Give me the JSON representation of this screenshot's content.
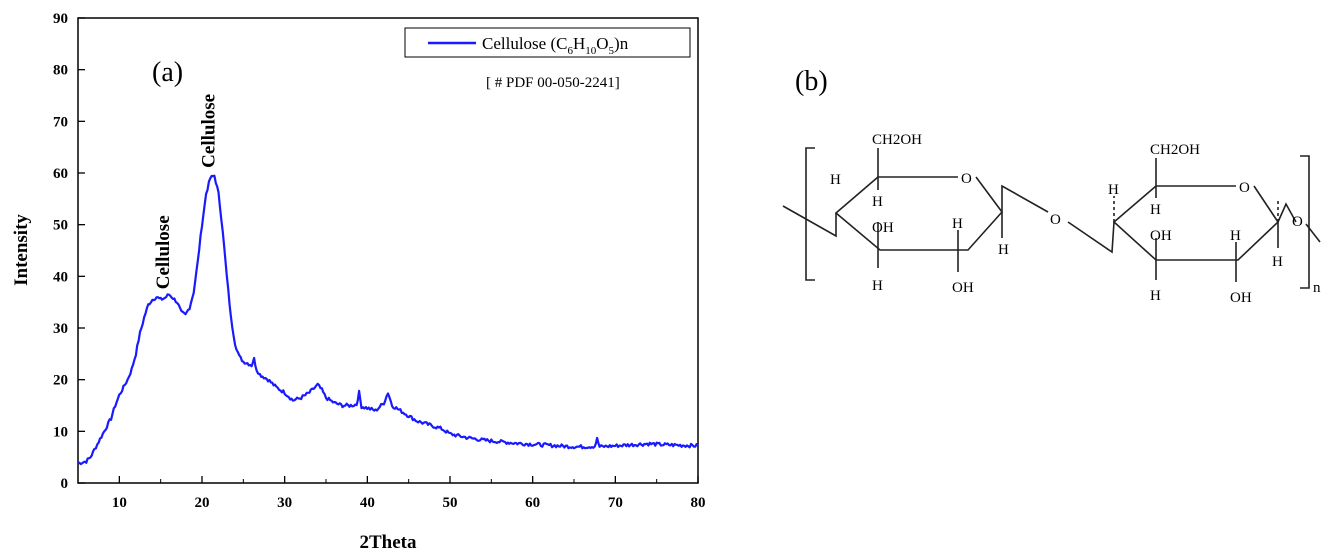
{
  "panel_a_label": "(a)",
  "panel_b_label": "(b)",
  "legend": {
    "prefix": "Cellulose (C",
    "sub1": "6",
    "mid1": "H",
    "sub2": "10",
    "mid2": "O",
    "sub3": "5",
    "suffix": ")n"
  },
  "reference_text": "[ # PDF 00-050-2241]",
  "line_color": "#1a1aff",
  "chart_data": {
    "type": "line",
    "xlabel": "2Theta",
    "ylabel": "Intensity",
    "xlim": [
      5,
      80
    ],
    "ylim": [
      0,
      90
    ],
    "xticks": [
      10,
      20,
      30,
      40,
      50,
      60,
      70,
      80
    ],
    "yticks": [
      0,
      10,
      20,
      30,
      40,
      50,
      60,
      70,
      80,
      90
    ],
    "series": [
      {
        "name": "Cellulose (C6H10O5)n",
        "x": [
          5,
          5.5,
          6,
          6.5,
          7,
          7.5,
          8,
          8.5,
          9,
          9.5,
          10,
          10.5,
          11,
          11.5,
          12,
          12.5,
          13,
          13.5,
          14,
          14.5,
          15,
          15.5,
          16,
          16.5,
          17,
          17.5,
          18,
          18.5,
          19,
          19.5,
          20,
          20.5,
          21,
          21.5,
          22,
          22.5,
          23,
          23.5,
          24,
          24.5,
          25,
          25.5,
          26,
          26.3,
          26.6,
          27,
          28,
          29,
          30,
          31,
          32,
          33,
          34,
          34.5,
          35,
          36,
          37,
          38,
          38.7,
          39,
          39.3,
          40,
          41,
          42,
          42.5,
          43,
          44,
          45,
          46,
          47,
          48,
          49,
          50,
          52,
          54,
          56,
          58,
          60,
          62,
          64,
          66,
          67.5,
          67.8,
          68.1,
          69,
          70,
          72,
          74,
          76,
          78,
          80
        ],
        "y": [
          3.8,
          4.0,
          4.2,
          5.0,
          6.5,
          8.0,
          9.5,
          11.0,
          12.5,
          15.0,
          17.0,
          18.5,
          20.0,
          22.0,
          25.0,
          29.0,
          32.0,
          34.5,
          35.5,
          36.0,
          35.5,
          35.8,
          36.5,
          35.8,
          35.0,
          33.0,
          32.5,
          34.0,
          37.0,
          43.0,
          50.0,
          56.0,
          59.0,
          59.5,
          56.0,
          49.0,
          40.0,
          32.0,
          27.0,
          24.5,
          23.5,
          23.2,
          22.8,
          24.0,
          22.0,
          21.0,
          20.0,
          18.5,
          17.5,
          16.0,
          16.5,
          17.5,
          19.0,
          18.0,
          16.5,
          15.5,
          15.0,
          15.0,
          15.2,
          17.5,
          14.8,
          14.5,
          14.0,
          15.5,
          17.5,
          15.0,
          14.0,
          13.0,
          12.0,
          11.5,
          11.0,
          10.5,
          9.5,
          8.8,
          8.3,
          8.0,
          7.7,
          7.5,
          7.3,
          7.1,
          7.0,
          7.1,
          8.5,
          7.0,
          7.1,
          7.2,
          7.4,
          7.6,
          7.4,
          7.3,
          7.2
        ]
      }
    ],
    "annotations": [
      {
        "text": "Cellulose",
        "x": 16.5,
        "y": 37.5
      },
      {
        "text": "Cellulose",
        "x": 22.0,
        "y": 61.0
      }
    ],
    "grid": false
  },
  "structure": {
    "ch2oh_1": "CH2OH",
    "ch2oh_2": "CH2OH",
    "o_ring_1": "O",
    "o_ring_2": "O",
    "o_bridge": "O",
    "o_end": "O",
    "h": "H",
    "oh": "OH",
    "n": "n"
  }
}
